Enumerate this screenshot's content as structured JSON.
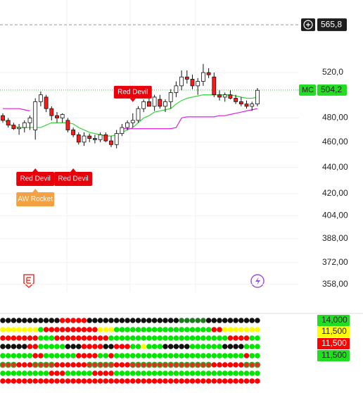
{
  "chart_data": {
    "type": "candlestick",
    "log_scale": true,
    "grid": true,
    "ylim": [
      353,
      591
    ],
    "yticks": [
      {
        "value": 520,
        "label": "520,0"
      },
      {
        "value": 480,
        "label": "480,00"
      },
      {
        "value": 460,
        "label": "460,00"
      },
      {
        "value": 440,
        "label": "440,00"
      },
      {
        "value": 420,
        "label": "420,00"
      },
      {
        "value": 404,
        "label": "404,00"
      },
      {
        "value": 388,
        "label": "388,00"
      },
      {
        "value": 372,
        "label": "372,00"
      },
      {
        "value": 358,
        "label": "358,00"
      }
    ],
    "up_color": "#ffffff",
    "down_color": "#ff1a1a",
    "open": [
      482,
      478,
      474,
      471,
      472,
      476,
      470,
      494,
      498,
      488,
      482,
      480,
      478,
      470,
      466,
      460,
      465,
      463,
      462,
      466,
      461,
      458,
      467,
      472,
      476,
      478,
      488,
      494,
      490,
      496,
      490,
      494,
      502,
      508,
      516,
      514,
      508,
      512,
      520,
      516,
      500,
      498,
      500,
      497,
      494,
      492,
      490,
      492
    ],
    "high": [
      484,
      480,
      476,
      475,
      478,
      482,
      497,
      503,
      500,
      490,
      485,
      484,
      480,
      472,
      468,
      468,
      467,
      466,
      468,
      468,
      465,
      470,
      475,
      478,
      484,
      490,
      496,
      498,
      500,
      500,
      496,
      505,
      512,
      522,
      522,
      518,
      515,
      528,
      524,
      520,
      504,
      502,
      504,
      500,
      498,
      495,
      494,
      506
    ],
    "low": [
      476,
      472,
      470,
      466,
      468,
      470,
      462,
      490,
      485,
      478,
      476,
      476,
      468,
      464,
      458,
      457,
      460,
      459,
      460,
      460,
      456,
      455,
      465,
      470,
      472,
      476,
      485,
      490,
      486,
      488,
      485,
      488,
      498,
      504,
      510,
      505,
      500,
      508,
      515,
      498,
      495,
      494,
      496,
      492,
      490,
      488,
      486,
      490
    ],
    "close": [
      478,
      474,
      471,
      472,
      476,
      480,
      494,
      500,
      488,
      482,
      480,
      483,
      470,
      466,
      460,
      465,
      463,
      462,
      466,
      461,
      458,
      467,
      472,
      476,
      478,
      488,
      494,
      490,
      498,
      490,
      494,
      502,
      508,
      516,
      514,
      508,
      512,
      520,
      518,
      500,
      498,
      500,
      497,
      494,
      492,
      490,
      492,
      504
    ],
    "overlays": [
      {
        "color": "#39d639",
        "values": [
          480,
          475,
          473,
          472,
          472,
          472,
          472,
          472,
          474,
          476,
          476,
          476,
          476,
          475,
          472,
          470,
          468,
          467,
          466,
          465,
          465,
          466,
          468,
          470,
          472,
          476,
          480,
          482,
          485,
          486,
          487,
          488,
          492,
          495,
          497,
          498,
          499,
          500,
          500,
          500,
          500,
          500,
          500,
          499,
          498,
          497,
          497,
          498
        ]
      },
      {
        "color": "#e020e0",
        "values": [
          488,
          488,
          488,
          488,
          487,
          486,
          null,
          null,
          null,
          null,
          null,
          null,
          null,
          null,
          null,
          null,
          null,
          null,
          null,
          null,
          null,
          null,
          471,
          471,
          471,
          471,
          471,
          471,
          471,
          471,
          471,
          471,
          472,
          480,
          481,
          481,
          481,
          481,
          481,
          481,
          482,
          482,
          483,
          484,
          485,
          486,
          487,
          488
        ]
      }
    ],
    "price_line": {
      "value": 565.8,
      "label": "565,8"
    },
    "current": {
      "name": "MC",
      "value": 504.2,
      "label": "504,2",
      "color": "#22dd22"
    },
    "annotations": [
      {
        "text": "Red Devil",
        "index": 24,
        "position": "above",
        "color": "#e8000b"
      },
      {
        "text": "Red Devil",
        "index": 6,
        "position": "below",
        "color": "#e8000b"
      },
      {
        "text": "Red Devil",
        "index": 13,
        "position": "below",
        "color": "#e8000b"
      },
      {
        "text": "AW Rocket",
        "index": 6,
        "position": "below",
        "color": "#f4a142"
      }
    ],
    "indicator": {
      "levels": [
        {
          "value": 14,
          "label": "14,000",
          "color": "#22dd22"
        },
        {
          "value": 11.5,
          "label": "11,500",
          "color": "#ffff00"
        },
        {
          "value": 11.5,
          "label": "11,500",
          "color": "#ff0000"
        },
        {
          "value": 11.5,
          "label": "11,500",
          "color": "#22dd22"
        }
      ],
      "palette": {
        "k": "#111111",
        "r": "#ff0000",
        "g": "#00e600",
        "y": "#ffff00",
        "d": "#1f7a1f",
        "o": "#e03020"
      },
      "rows": [
        "kkkkkkkkkkkrrrrrkkkkkkkkkkkkkkkkkdddddkkkkkkkkkk",
        "yyyyyyygrrrrrrrrrryyyggggggggggggggggggrryyyyyyy",
        "rrrrrrrgggrrrrrrrrrrggggggggggggggggggggggrrrrgg",
        "kkkkkrrgggggkkkrrrrkkrrrggygggkkkkkggggggkkkkggg",
        "ggggggrrggggggrrrrggrggggggggggggggggggggggggrgg",
        "ooorrroooorrrrrrooooorrrooooooooooooooorrrrrrooo",
        "gggggggggrrrgggggrrrrggggggggggggggggggggggggggg",
        "rrrrrrrrrrrrrrrrrrrrrrrrrrrrrrrrrrrrrrrrrrrrrrrr"
      ]
    }
  }
}
